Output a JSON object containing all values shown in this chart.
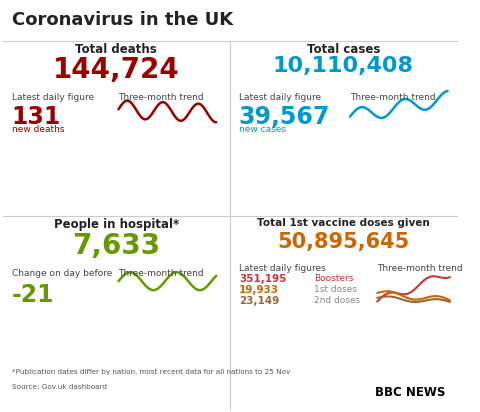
{
  "title": "Coronavirus in the UK",
  "bg_color": "#ffffff",
  "title_color": "#222222",
  "top_left": {
    "section_title": "Total deaths",
    "big_number": "144,724",
    "big_color": "#990000",
    "label1": "Latest daily figure",
    "daily_number": "131",
    "daily_color": "#990000",
    "daily_label": "new deaths",
    "daily_label_color": "#990000",
    "label2": "Three-month trend",
    "trend_color": "#990000"
  },
  "top_right": {
    "section_title": "Total cases",
    "big_number": "10,110,408",
    "big_color": "#0099cc",
    "label1": "Latest daily figure",
    "daily_number": "39,567",
    "daily_color": "#0099cc",
    "daily_label": "new cases",
    "daily_label_color": "#0099cc",
    "label2": "Three-month trend",
    "trend_color": "#0099cc"
  },
  "bottom_left": {
    "section_title": "People in hospital*",
    "big_number": "7,633",
    "big_color": "#669900",
    "label1": "Change on day before",
    "daily_number": "-21",
    "daily_color": "#669900",
    "label2": "Three-month trend",
    "trend_color": "#669900"
  },
  "bottom_right": {
    "section_title": "Total 1st vaccine doses given",
    "big_number": "50,895,645",
    "big_color": "#cc6600",
    "label1": "Latest daily figures",
    "figures": [
      {
        "value": "351,195",
        "label": "Boosters",
        "value_color": "#cc3333",
        "label_color": "#cc3333"
      },
      {
        "value": "19,933",
        "label": "1st doses",
        "value_color": "#cc6600",
        "label_color": "#888888"
      },
      {
        "value": "23,149",
        "label": "2nd doses",
        "value_color": "#996633",
        "label_color": "#888888"
      }
    ],
    "label2": "Three-month trend",
    "trend_colors": [
      "#cc3333",
      "#cc6600",
      "#996633"
    ]
  },
  "footnote": "*Publication dates differ by nation, most recent data for all nations to 25 Nov",
  "source": "Source: Gov.uk dashboard",
  "bbc_news": "BBC NEWS",
  "separator_color": "#cccccc"
}
